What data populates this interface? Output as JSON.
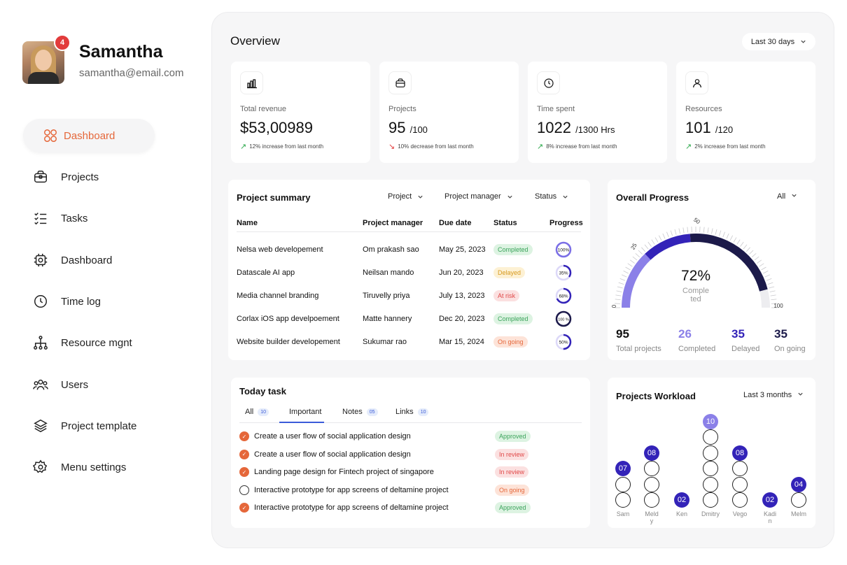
{
  "user": {
    "name": "Samantha",
    "email": "samantha@email.com",
    "notifications": "4"
  },
  "nav": [
    {
      "label": "Dashboard",
      "icon": "grid-icon",
      "active": true
    },
    {
      "label": "Projects",
      "icon": "briefcase-icon"
    },
    {
      "label": "Tasks",
      "icon": "checklist-icon"
    },
    {
      "label": "Dashboard",
      "icon": "chip-icon"
    },
    {
      "label": "Time log",
      "icon": "clock-icon"
    },
    {
      "label": "Resource mgnt",
      "icon": "hierarchy-icon"
    },
    {
      "label": "Users",
      "icon": "users-icon"
    },
    {
      "label": "Project template",
      "icon": "layers-icon"
    },
    {
      "label": "Menu settings",
      "icon": "settings-icon"
    }
  ],
  "overview": {
    "title": "Overview",
    "range": "Last 30 days",
    "stats": [
      {
        "label": "Total revenue",
        "value": "$53,00989",
        "sub": "",
        "change": "12% increase from last month",
        "trend": "up",
        "icon": "bar-chart-icon"
      },
      {
        "label": "Projects",
        "value": "95",
        "sub": "/100",
        "change": "10% decrease from last month",
        "trend": "down",
        "icon": "briefcase-icon"
      },
      {
        "label": "Time spent",
        "value": "1022",
        "sub": "/1300 Hrs",
        "change": "8% increase from last month",
        "trend": "up",
        "icon": "clock-icon"
      },
      {
        "label": "Resources",
        "value": "101",
        "sub": "/120",
        "change": "2% increase from last month",
        "trend": "up",
        "icon": "user-icon"
      }
    ]
  },
  "project_summary": {
    "title": "Project summary",
    "filters": [
      "Project",
      "Project manager",
      "Status"
    ],
    "columns": [
      "Name",
      "Project manager",
      "Due date",
      "Status",
      "Progress"
    ],
    "rows": [
      {
        "name": "Nelsa web developement",
        "manager": "Om prakash sao",
        "due": "May 25, 2023",
        "status": "Completed",
        "status_color": "green",
        "progress": "100%",
        "progress_value": 100
      },
      {
        "name": "Datascale AI app",
        "manager": "Neilsan mando",
        "due": "Jun 20, 2023",
        "status": "Delayed",
        "status_color": "yellow",
        "progress": "35%",
        "progress_value": 35
      },
      {
        "name": "Media channel branding",
        "manager": "Tiruvelly priya",
        "due": "July 13, 2023",
        "status": "At risk",
        "status_color": "red",
        "progress": "68%",
        "progress_value": 68
      },
      {
        "name": "Corlax iOS app develpoement",
        "manager": "Matte hannery",
        "due": "Dec 20, 2023",
        "status": "Completed",
        "status_color": "green",
        "progress": "100 %",
        "progress_value": 100
      },
      {
        "name": "Website builder developement",
        "manager": "Sukumar rao",
        "due": "Mar 15, 2024",
        "status": "On going",
        "status_color": "orange",
        "progress": "50%",
        "progress_value": 50
      }
    ]
  },
  "overall_progress": {
    "title": "Overall Progress",
    "filter": "All",
    "percent": "72%",
    "percent_value": 72,
    "caption_line1": "Comple",
    "caption_line2": "ted",
    "ticks": [
      "0",
      "25",
      "50",
      "100"
    ],
    "stats": [
      {
        "value": "95",
        "label": "Total projects",
        "color": "#111111"
      },
      {
        "value": "26",
        "label": "Completed",
        "color": "#8b80e8"
      },
      {
        "value": "35",
        "label": "Delayed",
        "color": "#3323b8"
      },
      {
        "value": "35",
        "label": "On going",
        "color": "#1c1a4a"
      }
    ]
  },
  "today_task": {
    "title": "Today task",
    "tabs": [
      {
        "label": "All",
        "count": "10"
      },
      {
        "label": "Important",
        "count": ""
      },
      {
        "label": "Notes",
        "count": "05"
      },
      {
        "label": "Links",
        "count": "10"
      }
    ],
    "tasks": [
      {
        "text": "Create a user flow of social application design",
        "status": "Approved",
        "color": "green",
        "done": true
      },
      {
        "text": "Create a user flow of social application design",
        "status": "In review",
        "color": "red",
        "done": true
      },
      {
        "text": "Landing page design for Fintech project of singapore",
        "status": "In review",
        "color": "red",
        "done": true
      },
      {
        "text": "Interactive prototype for app screens of deltamine project",
        "status": "On going",
        "color": "orange",
        "done": false
      },
      {
        "text": "Interactive prototype for app screens of deltamine project",
        "status": "Approved",
        "color": "green",
        "done": true
      }
    ]
  },
  "workload": {
    "title": "Projects Workload",
    "range": "Last 3 months",
    "people": [
      {
        "name": "Sam",
        "count": "07",
        "value": 7
      },
      {
        "name": "Meldy",
        "count": "08",
        "value": 8
      },
      {
        "name": "Ken",
        "count": "02",
        "value": 2
      },
      {
        "name": "Dmitry",
        "count": "10",
        "value": 10
      },
      {
        "name": "Vego",
        "count": "08",
        "value": 8
      },
      {
        "name": "Kadin",
        "count": "02",
        "value": 2
      },
      {
        "name": "Melm",
        "count": "04",
        "value": 4
      }
    ]
  }
}
